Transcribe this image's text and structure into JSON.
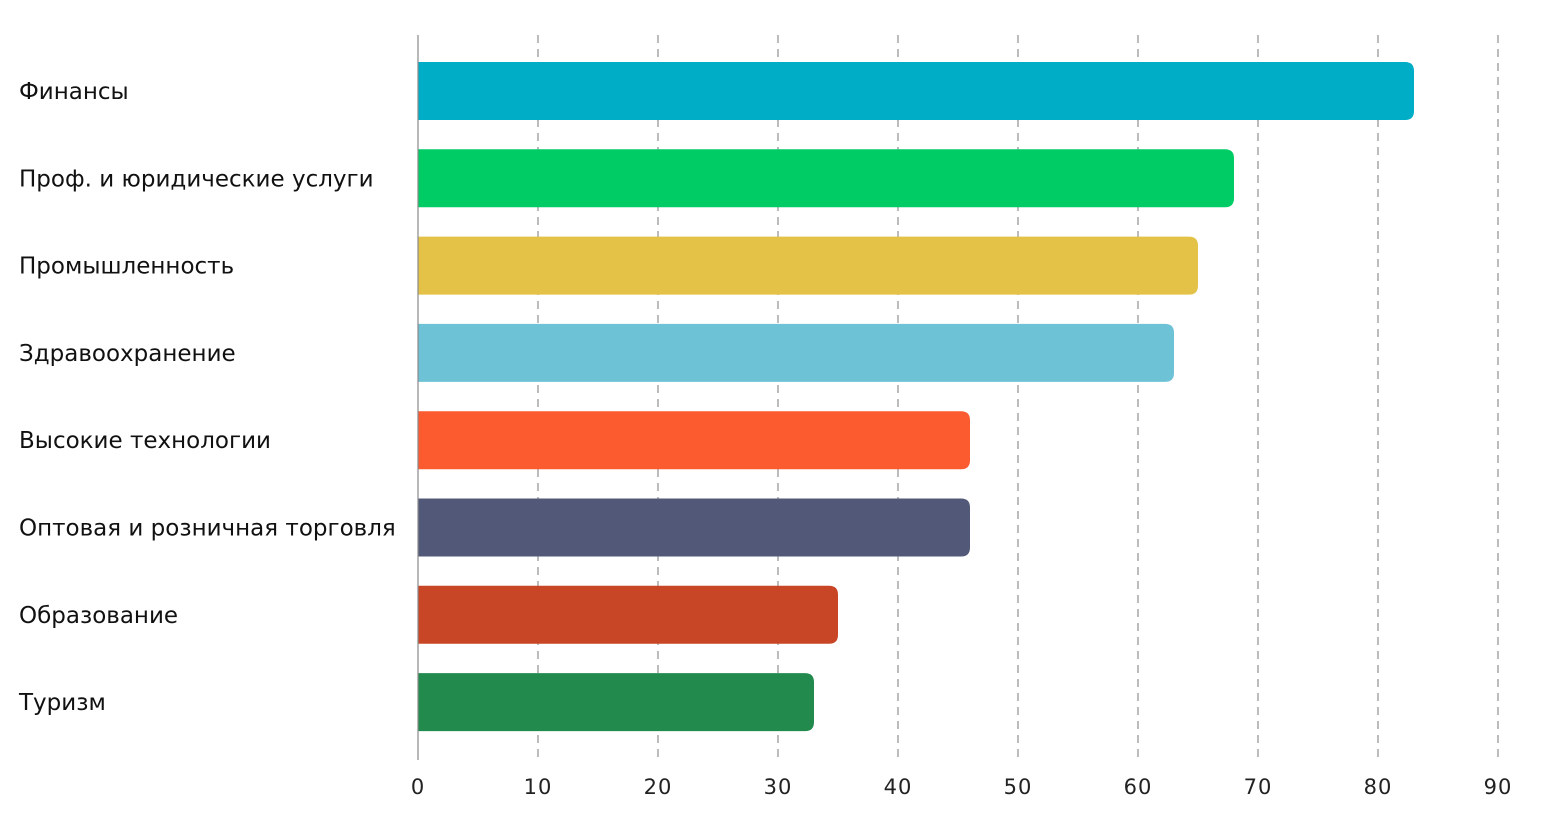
{
  "chart_data": {
    "type": "bar",
    "orientation": "horizontal",
    "categories": [
      "Финансы",
      "Проф. и юридические услуги",
      "Промышленность",
      "Здравоохранение",
      "Высокие технологии",
      "Оптовая и розничная торговля",
      "Образование",
      "Туризм"
    ],
    "values": [
      83,
      68,
      65,
      63,
      46,
      46,
      35,
      33
    ],
    "colors": [
      "#00adc6",
      "#00cc66",
      "#e3c247",
      "#6ec2d6",
      "#fc5a2f",
      "#525877",
      "#c84526",
      "#238a4e"
    ],
    "title": "",
    "xlabel": "",
    "ylabel": "",
    "xlim": [
      0,
      90
    ],
    "x_ticks": [
      "0",
      "10",
      "20",
      "30",
      "40",
      "50",
      "60",
      "70",
      "80",
      "90"
    ],
    "grid": true,
    "grid_style": "dashed-vertical",
    "legend": "none"
  }
}
